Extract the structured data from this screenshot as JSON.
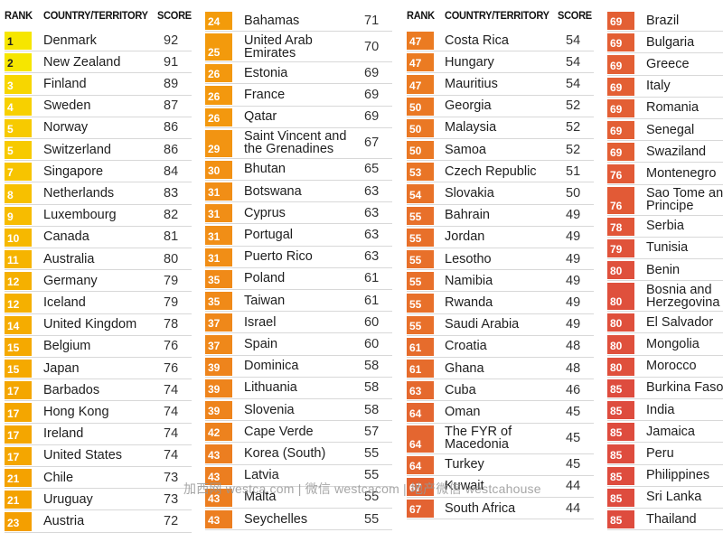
{
  "headers": {
    "rank": "RANK",
    "country": "COUNTRY/TERRITORY",
    "score": "SCORE"
  },
  "watermark": "加西网 westca.com | 微信 westcacom | 地产微信 westcahouse",
  "columns": [
    {
      "show_header": true,
      "rows": [
        {
          "rank": "1",
          "country": "Denmark",
          "score": "92",
          "color": "#f6e600"
        },
        {
          "rank": "2",
          "country": "New Zealand",
          "score": "91",
          "color": "#f6e600"
        },
        {
          "rank": "3",
          "country": "Finland",
          "score": "89",
          "color": "#f7d600"
        },
        {
          "rank": "4",
          "country": "Sweden",
          "score": "87",
          "color": "#f7d000"
        },
        {
          "rank": "5",
          "country": "Norway",
          "score": "86",
          "color": "#f7ca00"
        },
        {
          "rank": "5",
          "country": "Switzerland",
          "score": "86",
          "color": "#f7ca00"
        },
        {
          "rank": "7",
          "country": "Singapore",
          "score": "84",
          "color": "#f7c400"
        },
        {
          "rank": "8",
          "country": "Netherlands",
          "score": "83",
          "color": "#f7c000"
        },
        {
          "rank": "9",
          "country": "Luxembourg",
          "score": "82",
          "color": "#f7bc00"
        },
        {
          "rank": "10",
          "country": "Canada",
          "score": "81",
          "color": "#f6b800"
        },
        {
          "rank": "11",
          "country": "Australia",
          "score": "80",
          "color": "#f6b400"
        },
        {
          "rank": "12",
          "country": "Germany",
          "score": "79",
          "color": "#f5b000"
        },
        {
          "rank": "12",
          "country": "Iceland",
          "score": "79",
          "color": "#f5b000"
        },
        {
          "rank": "14",
          "country": "United Kingdom",
          "score": "78",
          "color": "#f5ac00"
        },
        {
          "rank": "15",
          "country": "Belgium",
          "score": "76",
          "color": "#f5a900"
        },
        {
          "rank": "15",
          "country": "Japan",
          "score": "76",
          "color": "#f5a900"
        },
        {
          "rank": "17",
          "country": "Barbados",
          "score": "74",
          "color": "#f4a600"
        },
        {
          "rank": "17",
          "country": "Hong Kong",
          "score": "74",
          "color": "#f4a600"
        },
        {
          "rank": "17",
          "country": "Ireland",
          "score": "74",
          "color": "#f4a600"
        },
        {
          "rank": "17",
          "country": "United States",
          "score": "74",
          "color": "#f4a600"
        },
        {
          "rank": "21",
          "country": "Chile",
          "score": "73",
          "color": "#f4a200"
        },
        {
          "rank": "21",
          "country": "Uruguay",
          "score": "73",
          "color": "#f4a200"
        },
        {
          "rank": "23",
          "country": "Austria",
          "score": "72",
          "color": "#f49f00"
        }
      ]
    },
    {
      "show_header": false,
      "rows": [
        {
          "rank": "24",
          "country": "Bahamas",
          "score": "71",
          "color": "#f39b0a"
        },
        {
          "rank": "25",
          "country": "United Arab\nEmirates",
          "score": "70",
          "color": "#f39a0c"
        },
        {
          "rank": "26",
          "country": "Estonia",
          "score": "69",
          "color": "#f3980e"
        },
        {
          "rank": "26",
          "country": "France",
          "score": "69",
          "color": "#f3980e"
        },
        {
          "rank": "26",
          "country": "Qatar",
          "score": "69",
          "color": "#f3980e"
        },
        {
          "rank": "29",
          "country": "Saint Vincent and\nthe Grenadines",
          "score": "67",
          "color": "#f29412"
        },
        {
          "rank": "30",
          "country": "Bhutan",
          "score": "65",
          "color": "#f29114"
        },
        {
          "rank": "31",
          "country": "Botswana",
          "score": "63",
          "color": "#f18e16"
        },
        {
          "rank": "31",
          "country": "Cyprus",
          "score": "63",
          "color": "#f18e16"
        },
        {
          "rank": "31",
          "country": "Portugal",
          "score": "63",
          "color": "#f18e16"
        },
        {
          "rank": "31",
          "country": "Puerto Rico",
          "score": "63",
          "color": "#f18e16"
        },
        {
          "rank": "35",
          "country": "Poland",
          "score": "61",
          "color": "#f08a18"
        },
        {
          "rank": "35",
          "country": "Taiwan",
          "score": "61",
          "color": "#f08a18"
        },
        {
          "rank": "37",
          "country": "Israel",
          "score": "60",
          "color": "#ef881a"
        },
        {
          "rank": "37",
          "country": "Spain",
          "score": "60",
          "color": "#ef881a"
        },
        {
          "rank": "39",
          "country": "Dominica",
          "score": "58",
          "color": "#ee841c"
        },
        {
          "rank": "39",
          "country": "Lithuania",
          "score": "58",
          "color": "#ee841c"
        },
        {
          "rank": "39",
          "country": "Slovenia",
          "score": "58",
          "color": "#ee841c"
        },
        {
          "rank": "42",
          "country": "Cape Verde",
          "score": "57",
          "color": "#ed821e"
        },
        {
          "rank": "43",
          "country": "Korea (South)",
          "score": "55",
          "color": "#ec7e20"
        },
        {
          "rank": "43",
          "country": "Latvia",
          "score": "55",
          "color": "#ec7e20"
        },
        {
          "rank": "43",
          "country": "Malta",
          "score": "55",
          "color": "#ec7e20"
        },
        {
          "rank": "43",
          "country": "Seychelles",
          "score": "55",
          "color": "#ec7e20"
        }
      ]
    },
    {
      "show_header": true,
      "rows": [
        {
          "rank": "47",
          "country": "Costa Rica",
          "score": "54",
          "color": "#eb7b22"
        },
        {
          "rank": "47",
          "country": "Hungary",
          "score": "54",
          "color": "#eb7b22"
        },
        {
          "rank": "47",
          "country": "Mauritius",
          "score": "54",
          "color": "#eb7b22"
        },
        {
          "rank": "50",
          "country": "Georgia",
          "score": "52",
          "color": "#ea7824"
        },
        {
          "rank": "50",
          "country": "Malaysia",
          "score": "52",
          "color": "#ea7824"
        },
        {
          "rank": "50",
          "country": "Samoa",
          "score": "52",
          "color": "#ea7824"
        },
        {
          "rank": "53",
          "country": "Czech Republic",
          "score": "51",
          "color": "#e97526"
        },
        {
          "rank": "54",
          "country": "Slovakia",
          "score": "50",
          "color": "#e87228"
        },
        {
          "rank": "55",
          "country": "Bahrain",
          "score": "49",
          "color": "#e8702a"
        },
        {
          "rank": "55",
          "country": "Jordan",
          "score": "49",
          "color": "#e8702a"
        },
        {
          "rank": "55",
          "country": "Lesotho",
          "score": "49",
          "color": "#e8702a"
        },
        {
          "rank": "55",
          "country": "Namibia",
          "score": "49",
          "color": "#e8702a"
        },
        {
          "rank": "55",
          "country": "Rwanda",
          "score": "49",
          "color": "#e8702a"
        },
        {
          "rank": "55",
          "country": "Saudi Arabia",
          "score": "49",
          "color": "#e8702a"
        },
        {
          "rank": "61",
          "country": "Croatia",
          "score": "48",
          "color": "#e66c2c"
        },
        {
          "rank": "61",
          "country": "Ghana",
          "score": "48",
          "color": "#e66c2c"
        },
        {
          "rank": "63",
          "country": "Cuba",
          "score": "46",
          "color": "#e5692e"
        },
        {
          "rank": "64",
          "country": "Oman",
          "score": "45",
          "color": "#e46630"
        },
        {
          "rank": "64",
          "country": "The FYR of\nMacedonia",
          "score": "45",
          "color": "#e46630"
        },
        {
          "rank": "64",
          "country": "Turkey",
          "score": "45",
          "color": "#e46630"
        },
        {
          "rank": "67",
          "country": "Kuwait",
          "score": "44",
          "color": "#e36332"
        },
        {
          "rank": "67",
          "country": "South Africa",
          "score": "44",
          "color": "#e36332"
        }
      ]
    },
    {
      "show_header": false,
      "rows": [
        {
          "rank": "69",
          "country": "Brazil",
          "score": "",
          "color": "#e35f34"
        },
        {
          "rank": "69",
          "country": "Bulgaria",
          "score": "",
          "color": "#e35f34"
        },
        {
          "rank": "69",
          "country": "Greece",
          "score": "",
          "color": "#e35f34"
        },
        {
          "rank": "69",
          "country": "Italy",
          "score": "",
          "color": "#e35f34"
        },
        {
          "rank": "69",
          "country": "Romania",
          "score": "",
          "color": "#e35f34"
        },
        {
          "rank": "69",
          "country": "Senegal",
          "score": "",
          "color": "#e35f34"
        },
        {
          "rank": "69",
          "country": "Swaziland",
          "score": "",
          "color": "#e35f34"
        },
        {
          "rank": "76",
          "country": "Montenegro",
          "score": "",
          "color": "#e25a36"
        },
        {
          "rank": "76",
          "country": "Sao Tome and\nPrincipe",
          "score": "",
          "color": "#e25a36"
        },
        {
          "rank": "78",
          "country": "Serbia",
          "score": "",
          "color": "#e15638"
        },
        {
          "rank": "79",
          "country": "Tunisia",
          "score": "",
          "color": "#e0533a"
        },
        {
          "rank": "80",
          "country": "Benin",
          "score": "",
          "color": "#df503c"
        },
        {
          "rank": "80",
          "country": "Bosnia and\nHerzegovina",
          "score": "",
          "color": "#df503c"
        },
        {
          "rank": "80",
          "country": "El Salvador",
          "score": "",
          "color": "#df503c"
        },
        {
          "rank": "80",
          "country": "Mongolia",
          "score": "",
          "color": "#df503c"
        },
        {
          "rank": "80",
          "country": "Morocco",
          "score": "",
          "color": "#df503c"
        },
        {
          "rank": "85",
          "country": "Burkina Faso",
          "score": "",
          "color": "#de4c3e"
        },
        {
          "rank": "85",
          "country": "India",
          "score": "",
          "color": "#de4c3e"
        },
        {
          "rank": "85",
          "country": "Jamaica",
          "score": "",
          "color": "#de4c3e"
        },
        {
          "rank": "85",
          "country": "Peru",
          "score": "",
          "color": "#de4c3e"
        },
        {
          "rank": "85",
          "country": "Philippines",
          "score": "",
          "color": "#de4c3e"
        },
        {
          "rank": "85",
          "country": "Sri Lanka",
          "score": "",
          "color": "#de4c3e"
        },
        {
          "rank": "85",
          "country": "Thailand",
          "score": "",
          "color": "#de4c3e"
        }
      ]
    }
  ]
}
